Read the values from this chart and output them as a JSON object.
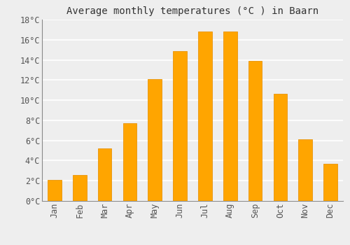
{
  "title": "Average monthly temperatures (°C ) in Baarn",
  "months": [
    "Jan",
    "Feb",
    "Mar",
    "Apr",
    "May",
    "Jun",
    "Jul",
    "Aug",
    "Sep",
    "Oct",
    "Nov",
    "Dec"
  ],
  "values": [
    2.1,
    2.6,
    5.2,
    7.7,
    12.1,
    14.9,
    16.8,
    16.8,
    13.9,
    10.6,
    6.1,
    3.7
  ],
  "bar_color_top": "#FFA500",
  "bar_color_bottom": "#FFB733",
  "bar_edge_color": "#E8940A",
  "ylim": [
    0,
    18
  ],
  "yticks": [
    0,
    2,
    4,
    6,
    8,
    10,
    12,
    14,
    16,
    18
  ],
  "ytick_labels": [
    "0°C",
    "2°C",
    "4°C",
    "6°C",
    "8°C",
    "10°C",
    "12°C",
    "14°C",
    "16°C",
    "18°C"
  ],
  "background_color": "#eeeeee",
  "plot_bg_color": "#eeeeee",
  "grid_color": "#ffffff",
  "title_fontsize": 10,
  "tick_fontsize": 8.5,
  "bar_width": 0.55
}
